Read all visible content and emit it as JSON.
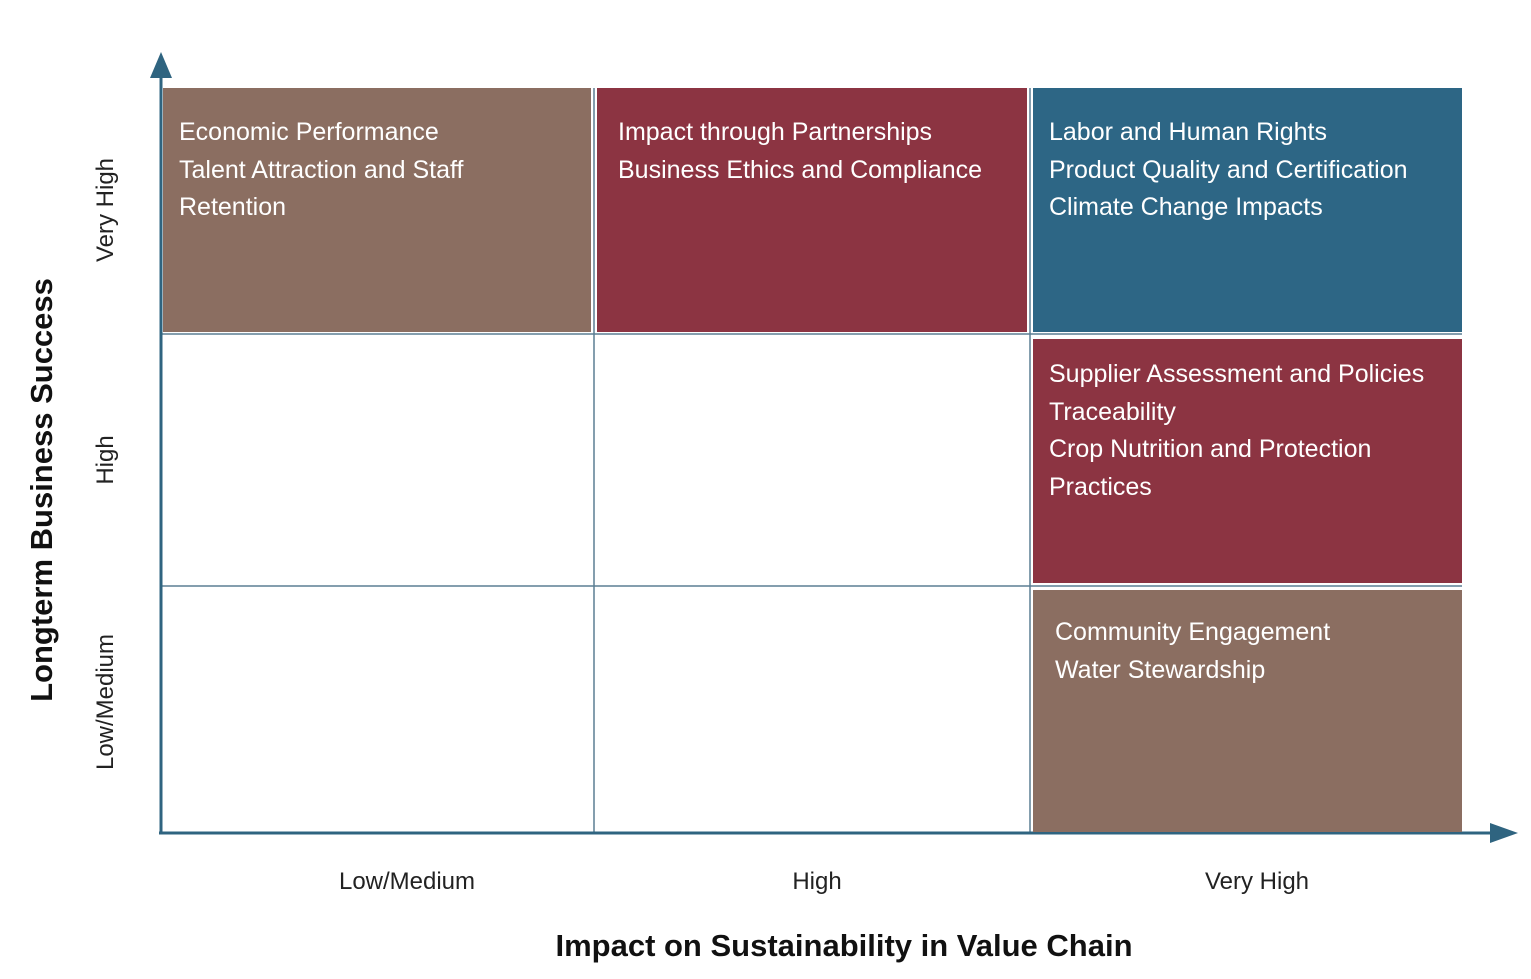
{
  "axes": {
    "x_title": "Impact on Sustainability in Value Chain",
    "y_title": "Longterm Business Success",
    "x_levels": [
      "Low/Medium",
      "High",
      "Very High"
    ],
    "y_levels": [
      "Very High",
      "High",
      "Low/Medium"
    ]
  },
  "colors": {
    "brown": "#8b6e61",
    "red": "#8c3442",
    "blue": "#2d6685",
    "axis": "#2f6480",
    "grid": "#5b7f93"
  },
  "cells": {
    "low_medium_x_very_high_y": {
      "color": "brown",
      "items": [
        "Economic Performance",
        "Talent Attraction and Staff Retention"
      ]
    },
    "high_x_very_high_y": {
      "color": "red",
      "items": [
        "Impact through Partnerships",
        "Business Ethics and Compliance"
      ]
    },
    "very_high_x_very_high_y": {
      "color": "blue",
      "items": [
        "Labor and Human Rights",
        "Product Quality and Certification",
        "Climate Change Impacts"
      ]
    },
    "very_high_x_high_y": {
      "color": "red",
      "items": [
        "Supplier Assessment and Policies",
        "Traceability",
        "Crop Nutrition and Protection Practices"
      ]
    },
    "very_high_x_low_medium_y": {
      "color": "brown",
      "items": [
        "Community Engagement",
        "Water Stewardship"
      ]
    }
  }
}
